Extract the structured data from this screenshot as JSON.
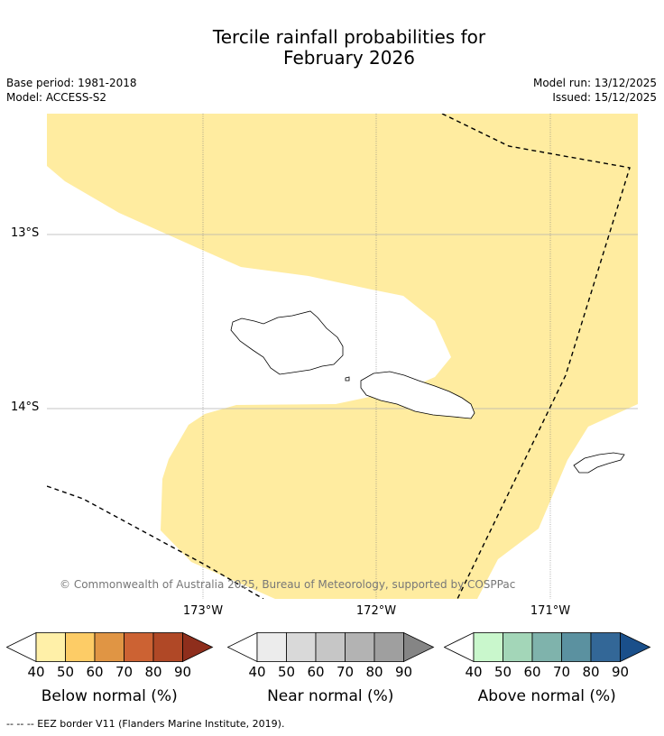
{
  "title": {
    "line1": "Tercile rainfall probabilities for",
    "line2": "February 2026"
  },
  "meta": {
    "base_period": "Base period: 1981-2018",
    "model": "Model: ACCESS-S2",
    "model_run": "Model run: 13/12/2025",
    "issued": "Issued: 15/12/2025"
  },
  "axes": {
    "lat_labels": [
      "13°S",
      "14°S"
    ],
    "lon_labels": [
      "173°W",
      "172°W",
      "171°W"
    ]
  },
  "copyright": "© Commonwealth of Australia 2025, Bureau of Meteorology, supported by COSPPac",
  "colorbars": [
    {
      "label": "Below normal (%)",
      "ticks": [
        "40",
        "50",
        "60",
        "70",
        "80",
        "90"
      ],
      "colors": [
        "#fff0a8",
        "#fdcc66",
        "#e09544",
        "#cc6233",
        "#b04826",
        "#8e2e1c"
      ]
    },
    {
      "label": "Near normal (%)",
      "ticks": [
        "40",
        "50",
        "60",
        "70",
        "80",
        "90"
      ],
      "colors": [
        "#ececec",
        "#d9d9d9",
        "#c6c6c6",
        "#b3b3b3",
        "#9f9f9f",
        "#858585"
      ]
    },
    {
      "label": "Above normal (%)",
      "ticks": [
        "40",
        "50",
        "60",
        "70",
        "80",
        "90"
      ],
      "colors": [
        "#c9f7cc",
        "#a3d6b8",
        "#7fb3ac",
        "#5b91a0",
        "#336797",
        "#1a4f8a"
      ]
    }
  ],
  "legend_colors": {
    "below_40_50": "#ffeca0"
  },
  "footer": "--  --  -- EEZ border V11 (Flanders Marine Institute, 2019)."
}
